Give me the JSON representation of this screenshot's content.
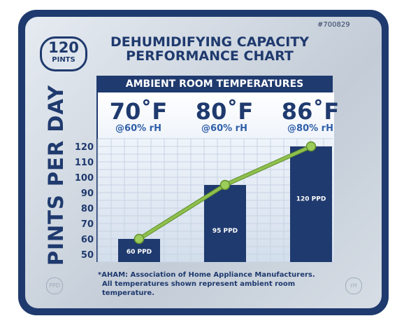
{
  "badge": {
    "number": "120",
    "unit": "PINTS"
  },
  "catalog_id": "#700829",
  "header": {
    "title_line1": "DEHUMIDIFYING CAPACITY",
    "title_line2": "PERFORMANCE CHART"
  },
  "band": {
    "text": "AMBIENT ROOM TEMPERATURES"
  },
  "temperatures": [
    {
      "temp": "70˚F",
      "condition": "@60% rH"
    },
    {
      "temp": "80˚F",
      "condition": "@60% rH"
    },
    {
      "temp": "86˚F",
      "condition": "@80% rH"
    }
  ],
  "footnote": {
    "line1": "*AHAM: Association of Home Appliance Manufacturers.",
    "line2": "All temperatures shown represent ambient room temperature."
  },
  "corner_marks": {
    "left": "PPD",
    "right": "rH"
  },
  "colors": {
    "navy": "#1f3a6e",
    "line": "#8fbf4d",
    "point": "#9ccc5a"
  },
  "chart_data": {
    "type": "bar",
    "categories": [
      "70˚F @60% rH",
      "80˚F @60% rH",
      "86˚F @80% rH"
    ],
    "values": [
      60,
      95,
      120
    ],
    "data_labels": [
      "60 PPD",
      "95 PPD",
      "120 PPD"
    ],
    "ylabel": "PINTS PER DAY",
    "yticks": [
      50,
      60,
      70,
      80,
      90,
      100,
      110,
      120
    ],
    "ylim": [
      45,
      125
    ],
    "line_overlay": true,
    "grid": true
  }
}
